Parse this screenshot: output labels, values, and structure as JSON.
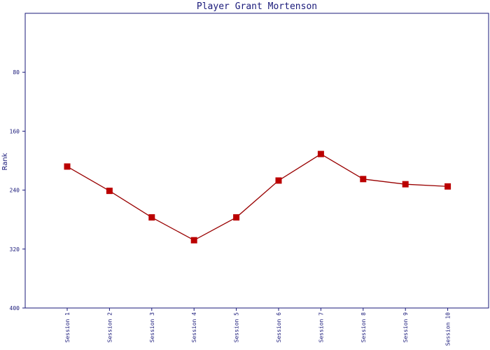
{
  "chart_data": {
    "type": "line",
    "title": "Player Grant Mortenson",
    "ylabel": "Rank",
    "xlabel": "",
    "y_inverted": true,
    "ylim": [
      0,
      400
    ],
    "yticks": [
      80,
      160,
      240,
      320,
      400
    ],
    "categories": [
      "Session 1",
      "Session 2",
      "Session 3",
      "Session 4",
      "Session 5",
      "Session 6",
      "Session 7",
      "Session 8",
      "Session 9",
      "Session 10"
    ],
    "series": [
      {
        "values": [
          208,
          241,
          277,
          308,
          277,
          227,
          191,
          225,
          232,
          235
        ],
        "color": "#bb0000",
        "line_color": "#990000",
        "marker": "square"
      }
    ],
    "grid": false,
    "axis_color": "#1a1a7a"
  }
}
